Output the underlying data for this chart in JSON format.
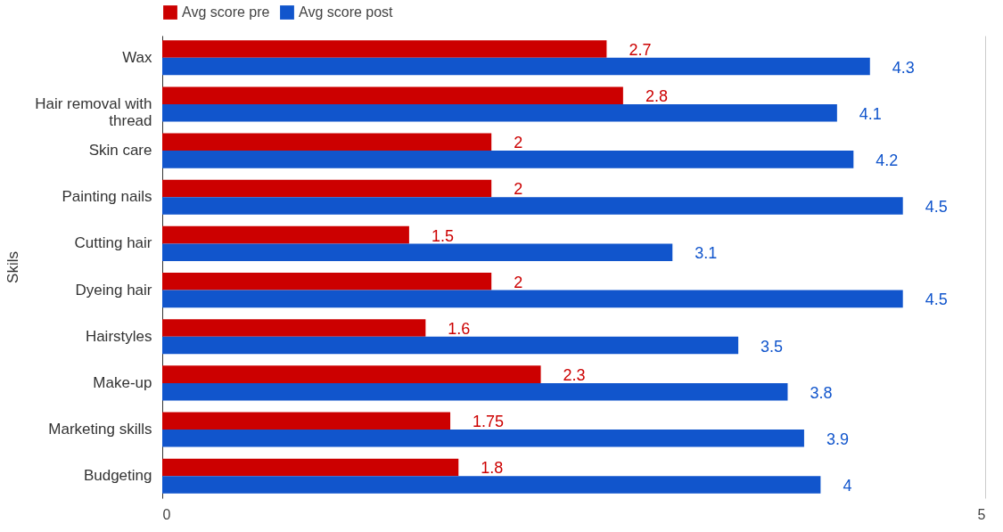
{
  "chart_data": {
    "type": "bar",
    "orientation": "horizontal",
    "ylabel": "Skils",
    "categories": [
      "Wax",
      "Hair removal with thread",
      "Skin care",
      "Painting nails",
      "Cutting hair",
      "Dyeing hair",
      "Hairstyles",
      "Make-up",
      "Marketing skills",
      "Budgeting"
    ],
    "series": [
      {
        "name": "Avg score pre",
        "color": "#cc0000",
        "values": [
          2.7,
          2.8,
          2,
          2,
          1.5,
          2,
          1.6,
          2.3,
          1.75,
          1.8
        ]
      },
      {
        "name": "Avg score post",
        "color": "#1155cc",
        "values": [
          4.3,
          4.1,
          4.2,
          4.5,
          3.1,
          4.5,
          3.5,
          3.8,
          3.9,
          4
        ]
      }
    ],
    "xlim": [
      0,
      5
    ],
    "xticks": [
      0,
      5
    ],
    "grid": "x",
    "legend": "top",
    "data_labels": true
  }
}
